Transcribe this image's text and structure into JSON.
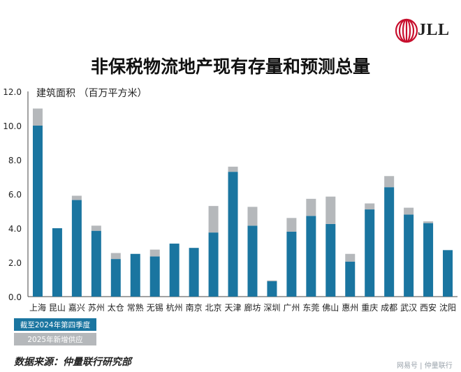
{
  "brand": {
    "name": "JLL",
    "accent": "#c8102e"
  },
  "title": "非保税物流地产现有存量和预测总量",
  "source": "数据来源：仲量联行研究部",
  "watermark": "网易号 | 仲量联行",
  "chart_data": {
    "type": "bar",
    "stacked": true,
    "ylabel": "建筑面积 （百万平方米）",
    "ylim": [
      0,
      12
    ],
    "yticks": [
      "0.0",
      "2.0",
      "4.0",
      "6.0",
      "8.0",
      "10.0",
      "12.0"
    ],
    "categories": [
      "上海",
      "昆山",
      "嘉兴",
      "苏州",
      "太仓",
      "常熟",
      "无锡",
      "杭州",
      "南京",
      "北京",
      "天津",
      "廊坊",
      "深圳",
      "广州",
      "东莞",
      "佛山",
      "惠州",
      "重庆",
      "成都",
      "武汉",
      "西安",
      "沈阳"
    ],
    "series": [
      {
        "name": "截至2024年第四季度",
        "color": "#1a75a0",
        "values": [
          10.0,
          4.0,
          5.65,
          3.85,
          2.2,
          2.5,
          2.35,
          3.1,
          2.85,
          3.75,
          7.3,
          4.15,
          0.9,
          3.8,
          4.72,
          4.25,
          2.05,
          5.1,
          6.4,
          4.8,
          4.3,
          2.72
        ]
      },
      {
        "name": "2025年新增供应",
        "color": "#b5b8bb",
        "values": [
          1.0,
          0.0,
          0.25,
          0.3,
          0.35,
          0.0,
          0.4,
          0.0,
          0.0,
          1.55,
          0.3,
          1.1,
          0.05,
          0.8,
          1.0,
          1.6,
          0.45,
          0.35,
          0.65,
          0.4,
          0.1,
          0.0
        ]
      }
    ],
    "legend_position": "bottom-left"
  }
}
